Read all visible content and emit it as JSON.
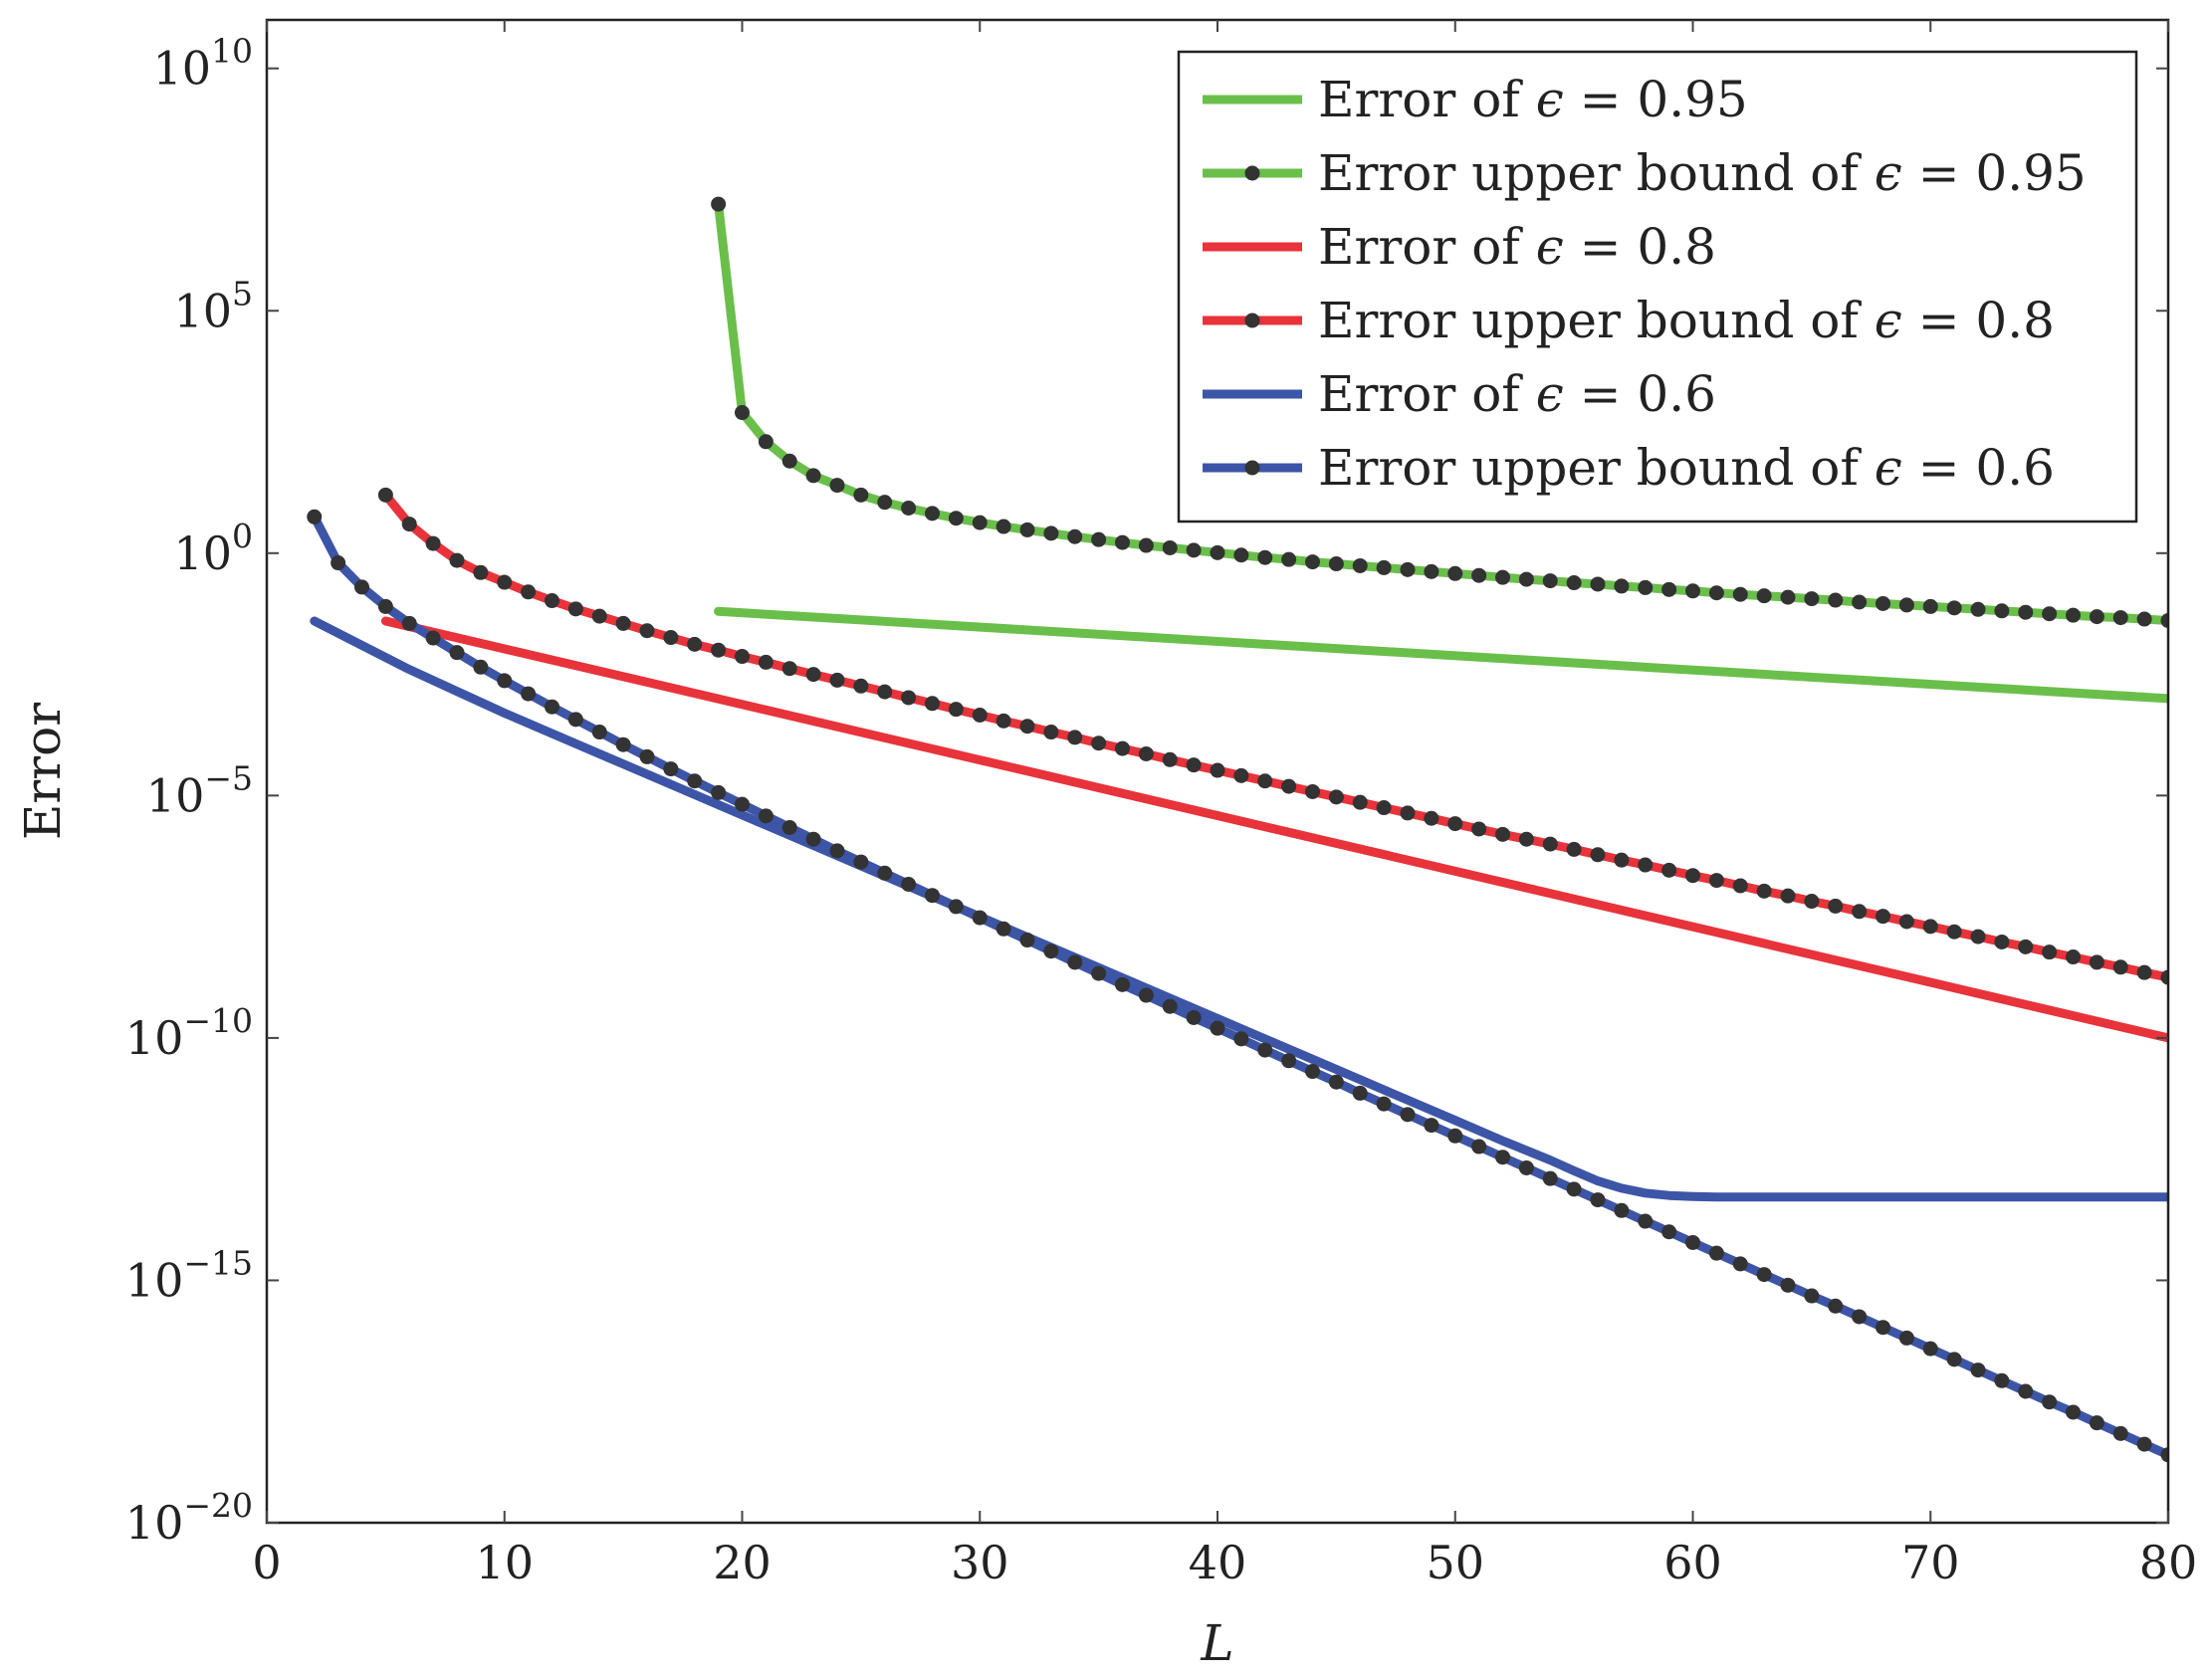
{
  "chart_data": {
    "type": "line",
    "xlabel": "L",
    "ylabel": "Error",
    "xlim": [
      0,
      80
    ],
    "ylim_log10": [
      -20,
      11
    ],
    "yscale": "log",
    "grid": false,
    "legend_position": "top-right",
    "x_ticks": [
      "0",
      "10",
      "20",
      "30",
      "40",
      "50",
      "60",
      "70",
      "80"
    ],
    "y_ticks": [
      {
        "base": "10",
        "exp": "10"
      },
      {
        "base": "10",
        "exp": "5"
      },
      {
        "base": "10",
        "exp": "0"
      },
      {
        "base": "10",
        "exp": "−5"
      },
      {
        "base": "10",
        "exp": "−10"
      },
      {
        "base": "10",
        "exp": "−15"
      },
      {
        "base": "10",
        "exp": "−20"
      }
    ],
    "series": [
      {
        "name": "Error of ϵ = 0.95",
        "color": "#6abf4b",
        "markers": false,
        "x": [
          19,
          80
        ],
        "log10_y": [
          -1.2,
          -3.0
        ]
      },
      {
        "name": "Error upper bound of ϵ = 0.95",
        "color": "#6abf4b",
        "markers": true,
        "x": [
          19,
          20,
          21,
          22,
          23,
          24,
          25,
          26,
          27,
          28,
          29,
          30,
          31,
          32,
          33,
          34,
          35,
          36,
          37,
          38,
          39,
          40,
          41,
          42,
          43,
          44,
          45,
          46,
          47,
          48,
          49,
          50,
          51,
          52,
          53,
          54,
          55,
          56,
          57,
          58,
          59,
          60,
          61,
          62,
          63,
          64,
          65,
          66,
          67,
          68,
          69,
          70,
          71,
          72,
          73,
          74,
          75,
          76,
          77,
          78,
          79,
          80
        ],
        "log10_y": [
          7.2,
          2.9,
          2.3,
          1.9,
          1.6,
          1.4,
          1.2,
          1.05,
          0.93,
          0.82,
          0.72,
          0.63,
          0.55,
          0.48,
          0.41,
          0.34,
          0.28,
          0.22,
          0.16,
          0.11,
          0.06,
          0.01,
          -0.04,
          -0.09,
          -0.13,
          -0.18,
          -0.22,
          -0.26,
          -0.3,
          -0.34,
          -0.38,
          -0.42,
          -0.46,
          -0.5,
          -0.54,
          -0.57,
          -0.61,
          -0.64,
          -0.68,
          -0.71,
          -0.75,
          -0.78,
          -0.82,
          -0.85,
          -0.88,
          -0.91,
          -0.94,
          -0.97,
          -1.01,
          -1.04,
          -1.07,
          -1.1,
          -1.13,
          -1.16,
          -1.19,
          -1.22,
          -1.25,
          -1.28,
          -1.31,
          -1.33,
          -1.36,
          -1.39
        ]
      },
      {
        "name": "Error of ϵ = 0.8",
        "color": "#e8333a",
        "markers": false,
        "x": [
          5,
          80
        ],
        "log10_y": [
          -1.4,
          -10.0
        ]
      },
      {
        "name": "Error upper bound of ϵ = 0.8",
        "color": "#e8333a",
        "markers": true,
        "x": [
          5,
          6,
          7,
          8,
          9,
          10,
          11,
          12,
          13,
          14,
          15,
          16,
          17,
          18,
          19,
          20,
          21,
          22,
          23,
          24,
          25,
          26,
          27,
          28,
          29,
          30,
          31,
          32,
          33,
          34,
          35,
          36,
          37,
          38,
          39,
          40,
          41,
          42,
          43,
          44,
          45,
          46,
          47,
          48,
          49,
          50,
          51,
          52,
          53,
          54,
          55,
          56,
          57,
          58,
          59,
          60,
          61,
          62,
          63,
          64,
          65,
          66,
          67,
          68,
          69,
          70,
          71,
          72,
          73,
          74,
          75,
          76,
          77,
          78,
          79,
          80
        ],
        "log10_y": [
          1.2,
          0.6,
          0.2,
          -0.15,
          -0.4,
          -0.6,
          -0.8,
          -0.98,
          -1.15,
          -1.3,
          -1.45,
          -1.6,
          -1.74,
          -1.88,
          -2.0,
          -2.13,
          -2.25,
          -2.38,
          -2.5,
          -2.62,
          -2.74,
          -2.86,
          -2.98,
          -3.1,
          -3.22,
          -3.34,
          -3.46,
          -3.57,
          -3.69,
          -3.8,
          -3.92,
          -4.03,
          -4.14,
          -4.26,
          -4.37,
          -4.48,
          -4.59,
          -4.7,
          -4.81,
          -4.92,
          -5.03,
          -5.14,
          -5.25,
          -5.36,
          -5.47,
          -5.58,
          -5.69,
          -5.8,
          -5.9,
          -6.0,
          -6.11,
          -6.22,
          -6.33,
          -6.43,
          -6.54,
          -6.65,
          -6.75,
          -6.86,
          -6.97,
          -7.07,
          -7.18,
          -7.28,
          -7.39,
          -7.49,
          -7.6,
          -7.7,
          -7.81,
          -7.91,
          -8.02,
          -8.12,
          -8.23,
          -8.33,
          -8.44,
          -8.54,
          -8.65,
          -8.75
        ]
      },
      {
        "name": "Error of ϵ = 0.6",
        "color": "#3d55a6",
        "markers": false,
        "x": [
          2,
          4,
          6,
          8,
          10,
          12,
          14,
          16,
          18,
          20,
          22,
          24,
          26,
          28,
          30,
          32,
          34,
          36,
          38,
          40,
          42,
          44,
          46,
          48,
          50,
          52,
          54,
          55,
          56,
          57,
          58,
          59,
          60,
          61,
          62,
          63,
          64,
          66,
          70,
          75,
          80
        ],
        "log10_y": [
          -1.4,
          -1.9,
          -2.4,
          -2.85,
          -3.3,
          -3.72,
          -4.14,
          -4.56,
          -4.98,
          -5.4,
          -5.82,
          -6.24,
          -6.66,
          -7.08,
          -7.5,
          -7.92,
          -8.34,
          -8.76,
          -9.18,
          -9.6,
          -10.02,
          -10.44,
          -10.86,
          -11.28,
          -11.7,
          -12.12,
          -12.52,
          -12.74,
          -12.95,
          -13.1,
          -13.2,
          -13.25,
          -13.27,
          -13.28,
          -13.28,
          -13.28,
          -13.28,
          -13.28,
          -13.28,
          -13.28,
          -13.28
        ]
      },
      {
        "name": "Error upper bound of ϵ = 0.6",
        "color": "#3d55a6",
        "markers": true,
        "x": [
          2,
          3,
          4,
          5,
          6,
          7,
          8,
          9,
          10,
          11,
          12,
          13,
          14,
          15,
          16,
          17,
          18,
          19,
          20,
          21,
          22,
          23,
          24,
          25,
          26,
          27,
          28,
          29,
          30,
          31,
          32,
          33,
          34,
          35,
          36,
          37,
          38,
          39,
          40,
          41,
          42,
          43,
          44,
          45,
          46,
          47,
          48,
          49,
          50,
          51,
          52,
          53,
          54,
          55,
          56,
          57,
          58,
          59,
          60,
          61,
          62,
          63,
          64,
          65,
          66,
          67,
          68,
          69,
          70,
          71,
          72,
          73,
          74,
          75,
          76,
          77,
          78,
          79,
          80
        ],
        "log10_y": [
          0.75,
          -0.2,
          -0.7,
          -1.1,
          -1.45,
          -1.75,
          -2.05,
          -2.35,
          -2.63,
          -2.9,
          -3.17,
          -3.43,
          -3.69,
          -3.95,
          -4.2,
          -4.45,
          -4.7,
          -4.94,
          -5.18,
          -5.42,
          -5.66,
          -5.9,
          -6.14,
          -6.37,
          -6.6,
          -6.83,
          -7.06,
          -7.29,
          -7.52,
          -7.75,
          -7.98,
          -8.21,
          -8.44,
          -8.67,
          -8.9,
          -9.12,
          -9.35,
          -9.58,
          -9.8,
          -10.02,
          -10.25,
          -10.47,
          -10.69,
          -10.91,
          -11.14,
          -11.36,
          -11.58,
          -11.8,
          -12.02,
          -12.24,
          -12.46,
          -12.68,
          -12.9,
          -13.12,
          -13.34,
          -13.56,
          -13.78,
          -14.0,
          -14.22,
          -14.44,
          -14.66,
          -14.88,
          -15.1,
          -15.32,
          -15.53,
          -15.75,
          -15.97,
          -16.19,
          -16.41,
          -16.63,
          -16.85,
          -17.07,
          -17.29,
          -17.51,
          -17.72,
          -17.94,
          -18.16,
          -18.38,
          -18.6
        ]
      }
    ],
    "legend": {
      "entries": [
        {
          "prefix": "Error of ",
          "eps": "ϵ",
          "suffix": " = 0.95"
        },
        {
          "prefix": "Error upper bound of ",
          "eps": "ϵ",
          "suffix": " = 0.95"
        },
        {
          "prefix": "Error of ",
          "eps": "ϵ",
          "suffix": " = 0.8"
        },
        {
          "prefix": "Error upper bound of ",
          "eps": "ϵ",
          "suffix": " = 0.8"
        },
        {
          "prefix": "Error of ",
          "eps": "ϵ",
          "suffix": " = 0.6"
        },
        {
          "prefix": "Error upper bound of ",
          "eps": "ϵ",
          "suffix": " = 0.6"
        }
      ]
    }
  }
}
